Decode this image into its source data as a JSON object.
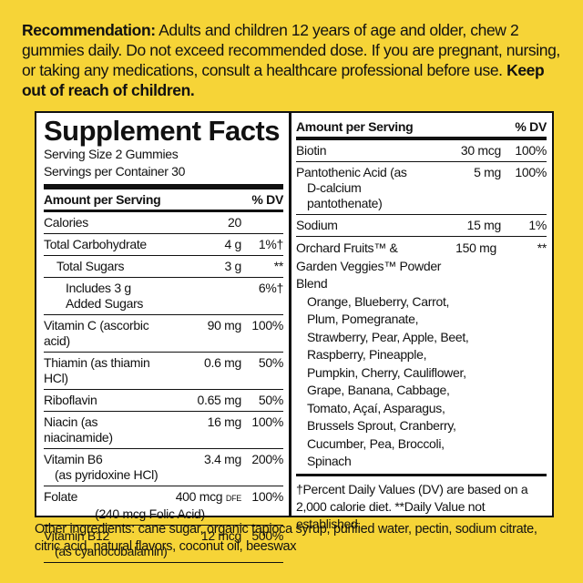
{
  "recommendation": {
    "label": "Recommendation:",
    "text": "Adults and children 12 years of age and older, chew 2 gummies daily. Do not exceed recommended dose. If you are pregnant, nursing, or taking any medications, consult a healthcare professional before use.",
    "warning": "Keep out of reach of children."
  },
  "facts": {
    "title": "Supplement Facts",
    "serving_size": "Serving Size 2 Gummies",
    "servings_per_container": "Servings per Container 30",
    "header": {
      "amount": "Amount per Serving",
      "dv": "% DV"
    },
    "left_rows": [
      {
        "name": "Calories",
        "amount": "20"
      },
      {
        "name": "Total Carbohydrate",
        "amount": "4 g",
        "dv": "1%†"
      },
      {
        "name": "Total Sugars",
        "amount": "3 g",
        "dv": "**"
      },
      {
        "name": "Includes 3 g Added Sugars",
        "dv": "6%†"
      },
      {
        "name": "Vitamin C (ascorbic acid)",
        "amount": "90 mg",
        "dv": "100%"
      },
      {
        "name": "Thiamin (as thiamin HCl)",
        "amount": "0.6 mg",
        "dv": "50%"
      },
      {
        "name": "Riboflavin",
        "amount": "0.65 mg",
        "dv": "50%"
      },
      {
        "name": "Niacin (as niacinamide)",
        "amount": "16 mg",
        "dv": "100%"
      },
      {
        "name": "Vitamin B6",
        "note": "(as pyridoxine HCl)",
        "amount": "3.4 mg",
        "dv": "200%"
      },
      {
        "name": "Folate",
        "amount": "400 mcg",
        "unit": "DFE",
        "dv": "100%",
        "sub": "(240 mcg Folic Acid)"
      },
      {
        "name": "Vitamin B12",
        "note": "(as cyanocobalamin)",
        "amount": "12 mcg",
        "dv": "500%"
      }
    ],
    "right_rows": [
      {
        "name": "Biotin",
        "amount": "30 mcg",
        "dv": "100%"
      },
      {
        "name": "Pantothenic Acid (as",
        "note": "D-calcium pantothenate)",
        "amount": "5 mg",
        "dv": "100%"
      },
      {
        "name": "Sodium",
        "amount": "15 mg",
        "dv": "1%"
      }
    ],
    "blend": {
      "name": "Orchard Fruits™ & Garden Veggies™ Powder Blend",
      "amount": "150 mg",
      "dv": "**",
      "ingredients": "Orange, Blueberry, Carrot, Plum, Pomegranate, Strawberry, Pear, Apple, Beet, Raspberry, Pineapple, Pumpkin, Cherry, Cauliflower, Grape, Banana, Cabbage, Tomato, Açaí, Asparagus, Brussels Sprout, Cranberry, Cucumber, Pea, Broccoli, Spinach"
    },
    "footnote": "†Percent Daily Values (DV) are based on a 2,000 calorie diet. **Daily Value not established."
  },
  "other_ingredients": "Other ingredients: cane sugar, organic tapioca syrup, purified water, pectin, sodium citrate, citric acid, natural flavors, coconut oil, beeswax"
}
